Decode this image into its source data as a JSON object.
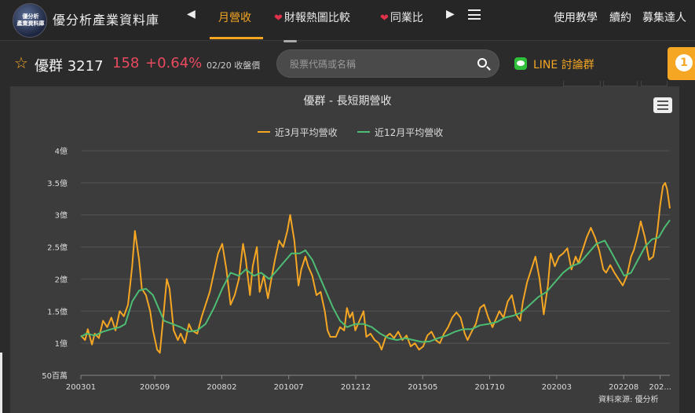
{
  "header": {
    "logo_text": "優分析\n產業資料庫",
    "site_title": "優分析產業資料庫",
    "tabs": [
      {
        "label": "月營收",
        "active": true
      },
      {
        "label": "財報熱圖比較",
        "icon": "heart-icon"
      },
      {
        "label": "同業比",
        "icon": "heart-icon"
      }
    ],
    "right_links": [
      "使用教學",
      "續約",
      "募集達人"
    ]
  },
  "stock": {
    "name": "優群 3217",
    "price": "158",
    "change": "+0.64%",
    "date_label": "02/20 收盤價"
  },
  "search": {
    "placeholder": "股票代碼或名稱"
  },
  "line_group": {
    "label": "LINE 討論群"
  },
  "notification": {
    "count": "1"
  },
  "colors": {
    "accent": "#f5a623",
    "up": "#e84a5f",
    "series_3m": "#f5a623",
    "series_12m": "#4dbd74"
  },
  "chart_data": {
    "type": "line",
    "title": "優群 - 長短期營收",
    "source": "資料來源: 優分析",
    "ylim": [
      50,
      400
    ],
    "yticks": [
      {
        "value": 50,
        "label": "50百萬"
      },
      {
        "value": 100,
        "label": "1億"
      },
      {
        "value": 150,
        "label": "1.5億"
      },
      {
        "value": 200,
        "label": "2億"
      },
      {
        "value": 250,
        "label": "2.5億"
      },
      {
        "value": 300,
        "label": "3億"
      },
      {
        "value": 350,
        "label": "3.5億"
      },
      {
        "value": 400,
        "label": "4億"
      }
    ],
    "xlim": [
      2003.0,
      2024.25
    ],
    "xticks": [
      {
        "value": 2003.0,
        "label": "200301"
      },
      {
        "value": 2005.667,
        "label": "200509"
      },
      {
        "value": 2008.083,
        "label": "200802"
      },
      {
        "value": 2010.5,
        "label": "201007"
      },
      {
        "value": 2012.917,
        "label": "201212"
      },
      {
        "value": 2015.333,
        "label": "201505"
      },
      {
        "value": 2017.75,
        "label": "201710"
      },
      {
        "value": 2020.167,
        "label": "202003"
      },
      {
        "value": 2022.583,
        "label": "202208"
      },
      {
        "value": 2023.9,
        "label": "202..."
      }
    ],
    "grid": true,
    "legend": "top-center",
    "series": [
      {
        "name": "近3月平均營收",
        "points": [
          [
            2003.0,
            112
          ],
          [
            2003.15,
            105
          ],
          [
            2003.25,
            122
          ],
          [
            2003.4,
            98
          ],
          [
            2003.5,
            115
          ],
          [
            2003.65,
            108
          ],
          [
            2003.8,
            135
          ],
          [
            2003.95,
            125
          ],
          [
            2004.1,
            140
          ],
          [
            2004.25,
            120
          ],
          [
            2004.4,
            150
          ],
          [
            2004.55,
            142
          ],
          [
            2004.7,
            160
          ],
          [
            2004.85,
            220
          ],
          [
            2004.95,
            275
          ],
          [
            2005.1,
            230
          ],
          [
            2005.2,
            185
          ],
          [
            2005.35,
            175
          ],
          [
            2005.5,
            150
          ],
          [
            2005.6,
            120
          ],
          [
            2005.75,
            90
          ],
          [
            2005.85,
            85
          ],
          [
            2005.95,
            130
          ],
          [
            2006.1,
            200
          ],
          [
            2006.2,
            185
          ],
          [
            2006.35,
            120
          ],
          [
            2006.5,
            105
          ],
          [
            2006.6,
            115
          ],
          [
            2006.75,
            100
          ],
          [
            2006.9,
            130
          ],
          [
            2007.0,
            120
          ],
          [
            2007.2,
            115
          ],
          [
            2007.35,
            140
          ],
          [
            2007.5,
            160
          ],
          [
            2007.65,
            180
          ],
          [
            2007.8,
            210
          ],
          [
            2007.95,
            240
          ],
          [
            2008.1,
            255
          ],
          [
            2008.25,
            215
          ],
          [
            2008.4,
            160
          ],
          [
            2008.55,
            175
          ],
          [
            2008.7,
            200
          ],
          [
            2008.85,
            255
          ],
          [
            2008.95,
            230
          ],
          [
            2009.1,
            175
          ],
          [
            2009.2,
            220
          ],
          [
            2009.35,
            250
          ],
          [
            2009.45,
            180
          ],
          [
            2009.6,
            205
          ],
          [
            2009.75,
            170
          ],
          [
            2009.85,
            195
          ],
          [
            2010.0,
            230
          ],
          [
            2010.15,
            260
          ],
          [
            2010.3,
            250
          ],
          [
            2010.45,
            275
          ],
          [
            2010.55,
            300
          ],
          [
            2010.7,
            260
          ],
          [
            2010.85,
            190
          ],
          [
            2010.95,
            215
          ],
          [
            2011.1,
            235
          ],
          [
            2011.2,
            220
          ],
          [
            2011.35,
            205
          ],
          [
            2011.5,
            175
          ],
          [
            2011.65,
            180
          ],
          [
            2011.8,
            150
          ],
          [
            2011.9,
            120
          ],
          [
            2012.0,
            110
          ],
          [
            2012.2,
            110
          ],
          [
            2012.35,
            125
          ],
          [
            2012.5,
            120
          ],
          [
            2012.6,
            155
          ],
          [
            2012.7,
            140
          ],
          [
            2012.8,
            148
          ],
          [
            2012.9,
            120
          ],
          [
            2013.05,
            135
          ],
          [
            2013.2,
            150
          ],
          [
            2013.3,
            110
          ],
          [
            2013.45,
            115
          ],
          [
            2013.6,
            105
          ],
          [
            2013.75,
            100
          ],
          [
            2013.85,
            90
          ],
          [
            2014.0,
            110
          ],
          [
            2014.15,
            115
          ],
          [
            2014.3,
            108
          ],
          [
            2014.45,
            118
          ],
          [
            2014.6,
            105
          ],
          [
            2014.75,
            112
          ],
          [
            2014.9,
            95
          ],
          [
            2015.05,
            100
          ],
          [
            2015.2,
            90
          ],
          [
            2015.35,
            95
          ],
          [
            2015.5,
            112
          ],
          [
            2015.65,
            118
          ],
          [
            2015.8,
            105
          ],
          [
            2015.95,
            100
          ],
          [
            2016.1,
            115
          ],
          [
            2016.25,
            125
          ],
          [
            2016.4,
            140
          ],
          [
            2016.55,
            148
          ],
          [
            2016.7,
            140
          ],
          [
            2016.85,
            115
          ],
          [
            2016.95,
            105
          ],
          [
            2017.1,
            118
          ],
          [
            2017.25,
            130
          ],
          [
            2017.4,
            155
          ],
          [
            2017.55,
            160
          ],
          [
            2017.7,
            140
          ],
          [
            2017.85,
            125
          ],
          [
            2017.95,
            135
          ],
          [
            2018.1,
            150
          ],
          [
            2018.25,
            140
          ],
          [
            2018.4,
            165
          ],
          [
            2018.55,
            175
          ],
          [
            2018.7,
            145
          ],
          [
            2018.85,
            135
          ],
          [
            2018.95,
            165
          ],
          [
            2019.1,
            195
          ],
          [
            2019.25,
            215
          ],
          [
            2019.4,
            235
          ],
          [
            2019.55,
            200
          ],
          [
            2019.7,
            145
          ],
          [
            2019.85,
            190
          ],
          [
            2019.95,
            240
          ],
          [
            2020.1,
            220
          ],
          [
            2020.25,
            235
          ],
          [
            2020.4,
            240
          ],
          [
            2020.55,
            248
          ],
          [
            2020.7,
            215
          ],
          [
            2020.85,
            235
          ],
          [
            2020.95,
            225
          ],
          [
            2021.1,
            245
          ],
          [
            2021.25,
            265
          ],
          [
            2021.4,
            280
          ],
          [
            2021.55,
            265
          ],
          [
            2021.7,
            245
          ],
          [
            2021.85,
            215
          ],
          [
            2021.95,
            210
          ],
          [
            2022.1,
            222
          ],
          [
            2022.25,
            210
          ],
          [
            2022.4,
            200
          ],
          [
            2022.55,
            190
          ],
          [
            2022.7,
            205
          ],
          [
            2022.85,
            235
          ],
          [
            2022.95,
            245
          ],
          [
            2023.1,
            270
          ],
          [
            2023.2,
            290
          ],
          [
            2023.35,
            265
          ],
          [
            2023.5,
            230
          ],
          [
            2023.65,
            235
          ],
          [
            2023.8,
            275
          ],
          [
            2023.9,
            315
          ],
          [
            2024.0,
            345
          ],
          [
            2024.08,
            350
          ],
          [
            2024.15,
            340
          ],
          [
            2024.25,
            310
          ]
        ]
      },
      {
        "name": "近12月平均營收",
        "points": [
          [
            2003.0,
            110
          ],
          [
            2003.2,
            115
          ],
          [
            2003.5,
            112
          ],
          [
            2003.8,
            118
          ],
          [
            2004.1,
            122
          ],
          [
            2004.4,
            125
          ],
          [
            2004.6,
            130
          ],
          [
            2004.85,
            165
          ],
          [
            2005.1,
            182
          ],
          [
            2005.35,
            185
          ],
          [
            2005.6,
            175
          ],
          [
            2005.8,
            155
          ],
          [
            2006.0,
            135
          ],
          [
            2006.3,
            130
          ],
          [
            2006.6,
            125
          ],
          [
            2006.9,
            118
          ],
          [
            2007.2,
            120
          ],
          [
            2007.5,
            130
          ],
          [
            2007.8,
            155
          ],
          [
            2008.1,
            185
          ],
          [
            2008.4,
            210
          ],
          [
            2008.7,
            205
          ],
          [
            2008.95,
            215
          ],
          [
            2009.25,
            205
          ],
          [
            2009.5,
            210
          ],
          [
            2009.8,
            200
          ],
          [
            2010.0,
            210
          ],
          [
            2010.3,
            225
          ],
          [
            2010.6,
            240
          ],
          [
            2010.9,
            240
          ],
          [
            2011.1,
            245
          ],
          [
            2011.35,
            230
          ],
          [
            2011.6,
            205
          ],
          [
            2011.85,
            180
          ],
          [
            2012.1,
            155
          ],
          [
            2012.35,
            135
          ],
          [
            2012.6,
            125
          ],
          [
            2012.9,
            130
          ],
          [
            2013.2,
            130
          ],
          [
            2013.5,
            125
          ],
          [
            2013.8,
            115
          ],
          [
            2014.1,
            108
          ],
          [
            2014.4,
            105
          ],
          [
            2014.7,
            108
          ],
          [
            2015.0,
            105
          ],
          [
            2015.3,
            102
          ],
          [
            2015.6,
            103
          ],
          [
            2015.9,
            108
          ],
          [
            2016.2,
            112
          ],
          [
            2016.5,
            118
          ],
          [
            2016.8,
            122
          ],
          [
            2017.1,
            122
          ],
          [
            2017.4,
            128
          ],
          [
            2017.7,
            130
          ],
          [
            2018.0,
            133
          ],
          [
            2018.3,
            140
          ],
          [
            2018.6,
            143
          ],
          [
            2018.9,
            148
          ],
          [
            2019.2,
            160
          ],
          [
            2019.5,
            172
          ],
          [
            2019.8,
            180
          ],
          [
            2020.1,
            195
          ],
          [
            2020.4,
            210
          ],
          [
            2020.7,
            220
          ],
          [
            2021.0,
            225
          ],
          [
            2021.3,
            240
          ],
          [
            2021.6,
            255
          ],
          [
            2021.9,
            260
          ],
          [
            2022.1,
            245
          ],
          [
            2022.35,
            225
          ],
          [
            2022.6,
            205
          ],
          [
            2022.85,
            210
          ],
          [
            2023.1,
            230
          ],
          [
            2023.35,
            250
          ],
          [
            2023.6,
            262
          ],
          [
            2023.85,
            265
          ],
          [
            2024.05,
            280
          ],
          [
            2024.25,
            292
          ]
        ]
      }
    ]
  }
}
